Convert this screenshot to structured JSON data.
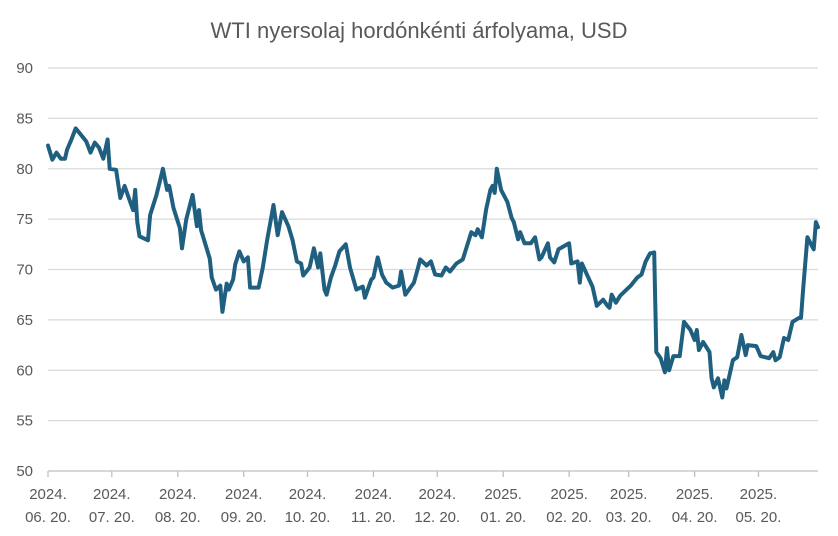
{
  "chart_data": {
    "type": "line",
    "title": "WTI nyersolaj hordónkénti árfolyama, USD",
    "xlabel": "",
    "ylabel": "",
    "ylim": [
      50,
      90
    ],
    "yticks": [
      50,
      55,
      60,
      65,
      70,
      75,
      80,
      85,
      90
    ],
    "grid": true,
    "legend": "none",
    "x_unit": "days since 2024. 06. 20.",
    "xlim": [
      0,
      362
    ],
    "xticks": [
      {
        "day": 0,
        "year": "2024.",
        "date": "06. 20."
      },
      {
        "day": 30,
        "year": "2024.",
        "date": "07. 20."
      },
      {
        "day": 61,
        "year": "2024.",
        "date": "08. 20."
      },
      {
        "day": 92,
        "year": "2024.",
        "date": "09. 20."
      },
      {
        "day": 122,
        "year": "2024.",
        "date": "10. 20."
      },
      {
        "day": 153,
        "year": "2024.",
        "date": "11. 20."
      },
      {
        "day": 183,
        "year": "2024.",
        "date": "12. 20."
      },
      {
        "day": 214,
        "year": "2025.",
        "date": "01. 20."
      },
      {
        "day": 245,
        "year": "2025.",
        "date": "02. 20."
      },
      {
        "day": 273,
        "year": "2025.",
        "date": "03. 20."
      },
      {
        "day": 304,
        "year": "2025.",
        "date": "04. 20."
      },
      {
        "day": 334,
        "year": "2025.",
        "date": "05. 20."
      }
    ],
    "series": [
      {
        "name": "WTI",
        "color": "#1f5f80",
        "points": [
          [
            0,
            82.3
          ],
          [
            2,
            80.9
          ],
          [
            4,
            81.6
          ],
          [
            6,
            81.0
          ],
          [
            8,
            81.0
          ],
          [
            9,
            81.9
          ],
          [
            11,
            82.9
          ],
          [
            13,
            84.0
          ],
          [
            15,
            83.5
          ],
          [
            18,
            82.7
          ],
          [
            20,
            81.6
          ],
          [
            22,
            82.6
          ],
          [
            24,
            82.1
          ],
          [
            26,
            81.0
          ],
          [
            28,
            82.9
          ],
          [
            29,
            80.0
          ],
          [
            32,
            79.9
          ],
          [
            34,
            77.1
          ],
          [
            36,
            78.3
          ],
          [
            38,
            77.1
          ],
          [
            40,
            75.9
          ],
          [
            41,
            77.9
          ],
          [
            42,
            74.7
          ],
          [
            43,
            73.3
          ],
          [
            47,
            72.9
          ],
          [
            48,
            75.4
          ],
          [
            51,
            77.4
          ],
          [
            54,
            80.0
          ],
          [
            56,
            77.9
          ],
          [
            57,
            78.3
          ],
          [
            59,
            76.1
          ],
          [
            62,
            74.1
          ],
          [
            63,
            72.1
          ],
          [
            65,
            75.0
          ],
          [
            68,
            77.4
          ],
          [
            70,
            74.3
          ],
          [
            71,
            75.9
          ],
          [
            72,
            73.9
          ],
          [
            76,
            71.1
          ],
          [
            77,
            69.2
          ],
          [
            79,
            68.0
          ],
          [
            81,
            68.4
          ],
          [
            82,
            65.8
          ],
          [
            84,
            68.6
          ],
          [
            85,
            68.0
          ],
          [
            87,
            69.0
          ],
          [
            88,
            70.5
          ],
          [
            90,
            71.8
          ],
          [
            92,
            70.8
          ],
          [
            94,
            71.2
          ],
          [
            95,
            68.2
          ],
          [
            99,
            68.2
          ],
          [
            101,
            70.2
          ],
          [
            103,
            72.9
          ],
          [
            106,
            76.4
          ],
          [
            108,
            73.4
          ],
          [
            110,
            75.7
          ],
          [
            113,
            74.3
          ],
          [
            115,
            72.9
          ],
          [
            117,
            70.8
          ],
          [
            119,
            70.6
          ],
          [
            120,
            69.4
          ],
          [
            123,
            70.2
          ],
          [
            125,
            72.1
          ],
          [
            127,
            70.2
          ],
          [
            128,
            71.6
          ],
          [
            130,
            68.0
          ],
          [
            131,
            67.5
          ],
          [
            133,
            69.2
          ],
          [
            135,
            70.4
          ],
          [
            137,
            71.8
          ],
          [
            140,
            72.5
          ],
          [
            142,
            70.2
          ],
          [
            145,
            68.0
          ],
          [
            148,
            68.3
          ],
          [
            149,
            67.2
          ],
          [
            152,
            69.0
          ],
          [
            153,
            69.2
          ],
          [
            155,
            71.2
          ],
          [
            157,
            69.5
          ],
          [
            159,
            68.7
          ],
          [
            162,
            68.2
          ],
          [
            165,
            68.4
          ],
          [
            166,
            69.8
          ],
          [
            168,
            67.5
          ],
          [
            172,
            68.7
          ],
          [
            174,
            70.2
          ],
          [
            175,
            71.0
          ],
          [
            178,
            70.4
          ],
          [
            180,
            70.8
          ],
          [
            182,
            69.5
          ],
          [
            185,
            69.4
          ],
          [
            187,
            70.2
          ],
          [
            189,
            69.8
          ],
          [
            192,
            70.6
          ],
          [
            195,
            71.0
          ],
          [
            199,
            73.7
          ],
          [
            201,
            73.4
          ],
          [
            202,
            74.0
          ],
          [
            204,
            73.2
          ],
          [
            206,
            76.0
          ],
          [
            208,
            77.9
          ],
          [
            209,
            78.3
          ],
          [
            210,
            77.6
          ],
          [
            211,
            80.0
          ],
          [
            213,
            77.9
          ],
          [
            216,
            76.7
          ],
          [
            218,
            75.1
          ],
          [
            219,
            74.7
          ],
          [
            221,
            73.0
          ],
          [
            222,
            73.7
          ],
          [
            224,
            72.6
          ],
          [
            227,
            72.6
          ],
          [
            229,
            73.2
          ],
          [
            231,
            71.0
          ],
          [
            232,
            71.2
          ],
          [
            235,
            72.6
          ],
          [
            236,
            71.2
          ],
          [
            238,
            70.7
          ],
          [
            240,
            72.0
          ],
          [
            245,
            72.6
          ],
          [
            246,
            70.6
          ],
          [
            249,
            70.8
          ],
          [
            250,
            68.7
          ],
          [
            251,
            70.6
          ],
          [
            254,
            69.2
          ],
          [
            256,
            68.3
          ],
          [
            258,
            66.4
          ],
          [
            261,
            67.0
          ],
          [
            263,
            66.4
          ],
          [
            264,
            66.2
          ],
          [
            265,
            67.5
          ],
          [
            267,
            66.7
          ],
          [
            269,
            67.4
          ],
          [
            272,
            68.0
          ],
          [
            274,
            68.4
          ],
          [
            277,
            69.2
          ],
          [
            279,
            69.5
          ],
          [
            281,
            70.8
          ],
          [
            283,
            71.6
          ],
          [
            285,
            71.7
          ],
          [
            286,
            61.8
          ],
          [
            288,
            61.2
          ],
          [
            290,
            59.8
          ],
          [
            291,
            62.2
          ],
          [
            292,
            60.0
          ],
          [
            294,
            61.4
          ],
          [
            297,
            61.4
          ],
          [
            299,
            64.8
          ],
          [
            302,
            64.0
          ],
          [
            304,
            63.0
          ],
          [
            305,
            64.0
          ],
          [
            306,
            62.0
          ],
          [
            308,
            62.8
          ],
          [
            311,
            61.8
          ],
          [
            312,
            59.2
          ],
          [
            313,
            58.3
          ],
          [
            315,
            59.2
          ],
          [
            317,
            57.3
          ],
          [
            318,
            59.0
          ],
          [
            319,
            58.2
          ],
          [
            322,
            61.0
          ],
          [
            324,
            61.3
          ],
          [
            326,
            63.5
          ],
          [
            328,
            61.5
          ],
          [
            329,
            62.5
          ],
          [
            333,
            62.4
          ],
          [
            335,
            61.4
          ],
          [
            339,
            61.2
          ],
          [
            341,
            61.8
          ],
          [
            342,
            61.0
          ],
          [
            344,
            61.3
          ],
          [
            346,
            63.2
          ],
          [
            348,
            63.0
          ],
          [
            350,
            64.8
          ],
          [
            353,
            65.2
          ],
          [
            354,
            65.2
          ],
          [
            355,
            68.0
          ],
          [
            357,
            73.2
          ],
          [
            360,
            72.0
          ],
          [
            361,
            74.7
          ],
          [
            362,
            74.2
          ]
        ]
      }
    ]
  }
}
